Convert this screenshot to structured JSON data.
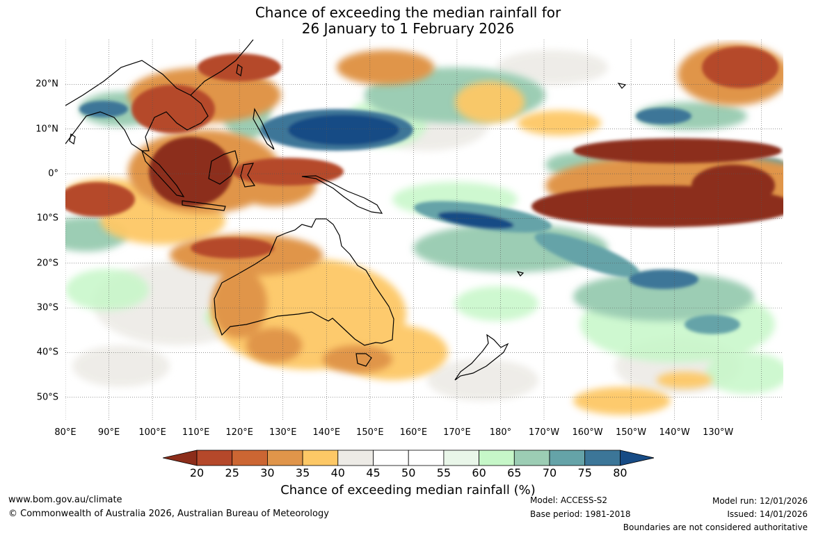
{
  "title_line1": "Chance of exceeding the median rainfall for",
  "title_line2": "26 January to 1 February 2026",
  "map": {
    "lon_range": [
      80,
      245
    ],
    "lat_range": [
      -55,
      30
    ],
    "lon_labels": [
      "80°E",
      "90°E",
      "100°E",
      "110°E",
      "120°E",
      "130°E",
      "140°E",
      "150°E",
      "160°E",
      "170°E",
      "180°",
      "170°W",
      "160°W",
      "150°W",
      "140°W",
      "130°W"
    ],
    "lat_labels": [
      "20°N",
      "10°N",
      "0°",
      "10°S",
      "20°S",
      "30°S",
      "40°S",
      "50°S"
    ]
  },
  "colorbar": {
    "ticks": [
      "20",
      "25",
      "30",
      "35",
      "40",
      "45",
      "50",
      "55",
      "60",
      "65",
      "70",
      "75",
      "80"
    ],
    "colors": [
      "#8c2d1a",
      "#b5482a",
      "#cc6633",
      "#e0954a",
      "#fdc866",
      "#edebe6",
      "#ffffff",
      "#ffffff",
      "#e9f6e9",
      "#c6f7c8",
      "#9ccdb4",
      "#65a3a8",
      "#3c7698",
      "#174b85"
    ],
    "label": "Chance of exceeding median rainfall (%)"
  },
  "footer": {
    "website": "www.bom.gov.au/climate",
    "copyright": "© Commonwealth of Australia 2026, Australian Bureau of Meteorology",
    "model": "Model: ACCESS-S2",
    "base_period": "Base period: 1981-2018",
    "model_run": "Model run: 12/01/2026",
    "issued": "Issued: 14/01/2026",
    "boundaries": "Boundaries are not considered authoritative"
  }
}
